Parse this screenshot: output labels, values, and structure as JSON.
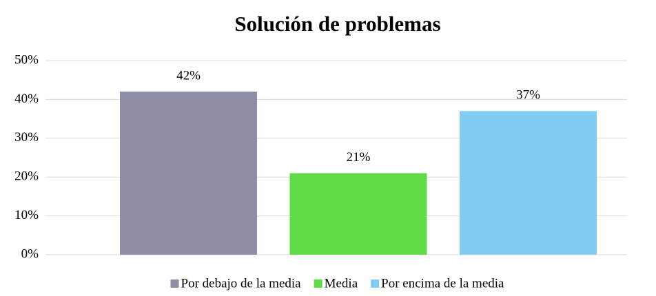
{
  "chart_data": {
    "type": "bar",
    "title": "Solución de problemas",
    "categories": [
      "Por debajo de la media",
      "Media",
      "Por encima de la media"
    ],
    "values": [
      42,
      21,
      37
    ],
    "value_labels": [
      "42%",
      "21%",
      "37%"
    ],
    "colors": [
      "#8e8fa7",
      "#62db49",
      "#80cdf1"
    ],
    "ylim": [
      0,
      50
    ],
    "yticks": [
      {
        "value": 0,
        "label": "0%"
      },
      {
        "value": 10,
        "label": "10%"
      },
      {
        "value": 20,
        "label": "20%"
      },
      {
        "value": 30,
        "label": "30%"
      },
      {
        "value": 40,
        "label": "40%"
      },
      {
        "value": 50,
        "label": "50%"
      }
    ],
    "grid": true,
    "legend": "bottom"
  }
}
